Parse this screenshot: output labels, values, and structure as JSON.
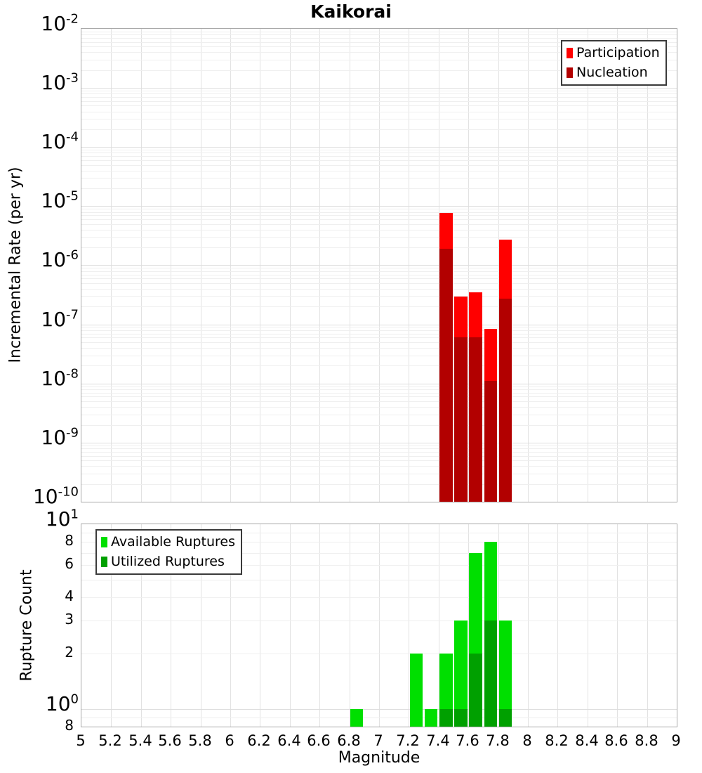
{
  "title": "Kaikorai",
  "xlabel": "Magnitude",
  "xticks": {
    "values": [
      5,
      5.2,
      5.4,
      5.6,
      5.8,
      6,
      6.2,
      6.4,
      6.6,
      6.8,
      7,
      7.2,
      7.4,
      7.6,
      7.8,
      8,
      8.2,
      8.4,
      8.6,
      8.8,
      9
    ],
    "labels": [
      "5",
      "5.2",
      "5.4",
      "5.6",
      "5.8",
      "6",
      "6.2",
      "6.4",
      "6.6",
      "6.8",
      "7",
      "7.2",
      "7.4",
      "7.6",
      "7.8",
      "8",
      "8.2",
      "8.4",
      "8.6",
      "8.8",
      "9"
    ]
  },
  "chart_data": [
    {
      "type": "bar",
      "name": "incremental-rate-panel",
      "title": "Kaikorai",
      "ylabel": "Incremental Rate (per yr)",
      "yscale": "log",
      "ylim": [
        1e-10,
        0.01
      ],
      "xlim": [
        5,
        9
      ],
      "bin_width": 0.1,
      "grid": true,
      "legend_position": "top-right",
      "ytick_labels": [
        {
          "value": 0.01,
          "base": "10",
          "exp": "-2"
        },
        {
          "value": 0.001,
          "base": "10",
          "exp": "-3"
        },
        {
          "value": 0.0001,
          "base": "10",
          "exp": "-4"
        },
        {
          "value": 1e-05,
          "base": "10",
          "exp": "-5"
        },
        {
          "value": 1e-06,
          "base": "10",
          "exp": "-6"
        },
        {
          "value": 1e-07,
          "base": "10",
          "exp": "-7"
        },
        {
          "value": 1e-08,
          "base": "10",
          "exp": "-8"
        },
        {
          "value": 1e-09,
          "base": "10",
          "exp": "-9"
        },
        {
          "value": 1e-10,
          "base": "10",
          "exp": "-10"
        }
      ],
      "series": [
        {
          "name": "Participation",
          "color": "#ff0000",
          "bins": [
            7.4,
            7.5,
            7.6,
            7.7,
            7.8
          ],
          "values": [
            7.8e-06,
            3e-07,
            3.5e-07,
            8.5e-08,
            2.7e-06
          ]
        },
        {
          "name": "Nucleation",
          "color": "#b20000",
          "bins": [
            7.4,
            7.5,
            7.6,
            7.7,
            7.8
          ],
          "values": [
            1.9e-06,
            6e-08,
            6e-08,
            1.1e-08,
            2.7e-07
          ]
        }
      ]
    },
    {
      "type": "bar",
      "name": "rupture-count-panel",
      "ylabel": "Rupture Count",
      "yscale": "log",
      "ylim": [
        0.8,
        10
      ],
      "xlim": [
        5,
        9
      ],
      "bin_width": 0.1,
      "grid": true,
      "legend_position": "top-left",
      "ytick_labels": [
        {
          "value": 10,
          "base": "10",
          "exp": "1"
        },
        {
          "value": 8,
          "label": "8",
          "minor": true
        },
        {
          "value": 6,
          "label": "6",
          "minor": true
        },
        {
          "value": 4,
          "label": "4",
          "minor": true
        },
        {
          "value": 3,
          "label": "3",
          "minor": true
        },
        {
          "value": 2,
          "label": "2",
          "minor": true
        },
        {
          "value": 1,
          "base": "10",
          "exp": "0"
        },
        {
          "value": 0.8,
          "label": "8",
          "minor": true
        }
      ],
      "series": [
        {
          "name": "Available Ruptures",
          "color": "#00df00",
          "bins": [
            6.8,
            7.2,
            7.3,
            7.4,
            7.5,
            7.6,
            7.7,
            7.8
          ],
          "values": [
            1,
            2,
            1,
            2,
            3,
            7,
            8,
            3
          ]
        },
        {
          "name": "Utilized Ruptures",
          "color": "#00a000",
          "bins": [
            7.4,
            7.5,
            7.6,
            7.7,
            7.8
          ],
          "values": [
            1,
            1,
            2,
            3,
            1
          ]
        }
      ]
    }
  ]
}
